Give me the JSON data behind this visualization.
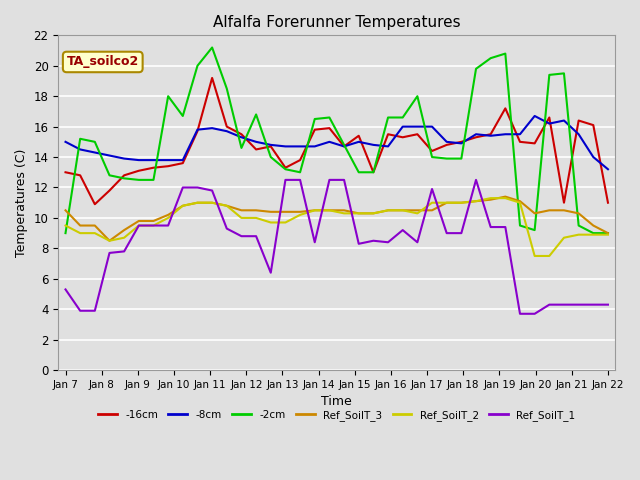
{
  "title": "Alfalfa Forerunner Temperatures",
  "xlabel": "Time",
  "ylabel": "Temperatures (C)",
  "annotation": "TA_soilco2",
  "ylim": [
    0,
    22
  ],
  "yticks": [
    0,
    2,
    4,
    6,
    8,
    10,
    12,
    14,
    16,
    18,
    20,
    22
  ],
  "x_labels": [
    "Jan 7",
    "Jan 8",
    "Jan 9",
    "Jan 10",
    "Jan 11",
    "Jan 12",
    "Jan 13",
    "Jan 14",
    "Jan 15",
    "Jan 16",
    "Jan 17",
    "Jan 18",
    "Jan 19",
    "Jan 20",
    "Jan 21",
    "Jan 22"
  ],
  "n_ticks": 16,
  "series": {
    "-16cm": {
      "color": "#cc0000",
      "values": [
        13.0,
        12.8,
        10.9,
        11.8,
        12.8,
        13.1,
        13.3,
        13.4,
        13.6,
        15.7,
        19.2,
        16.0,
        15.5,
        14.5,
        14.7,
        13.3,
        13.8,
        15.8,
        15.9,
        14.7,
        15.4,
        13.0,
        15.5,
        15.3,
        15.5,
        14.4,
        14.8,
        15.0,
        15.3,
        15.5,
        17.2,
        15.0,
        14.9,
        16.6,
        11.0,
        16.4,
        16.1,
        11.0
      ]
    },
    "-8cm": {
      "color": "#0000cc",
      "values": [
        15.0,
        14.5,
        14.3,
        14.1,
        13.9,
        13.8,
        13.8,
        13.8,
        13.8,
        15.8,
        15.9,
        15.7,
        15.3,
        15.0,
        14.8,
        14.7,
        14.7,
        14.7,
        15.0,
        14.7,
        15.0,
        14.8,
        14.7,
        16.0,
        16.0,
        16.0,
        15.0,
        14.9,
        15.5,
        15.4,
        15.5,
        15.5,
        16.7,
        16.2,
        16.4,
        15.5,
        14.0,
        13.2
      ]
    },
    "-2cm": {
      "color": "#00cc00",
      "values": [
        9.0,
        15.2,
        15.0,
        12.8,
        12.6,
        12.5,
        12.5,
        18.0,
        16.7,
        20.0,
        21.2,
        18.5,
        14.6,
        16.8,
        14.0,
        13.2,
        13.0,
        16.5,
        16.6,
        14.8,
        13.0,
        13.0,
        16.6,
        16.6,
        18.0,
        14.0,
        13.9,
        13.9,
        19.8,
        20.5,
        20.8,
        9.5,
        9.2,
        19.4,
        19.5,
        9.5,
        9.0,
        9.0
      ]
    },
    "Ref_SoilT_3": {
      "color": "#cc8800",
      "values": [
        10.5,
        9.5,
        9.5,
        8.5,
        9.2,
        9.8,
        9.8,
        10.2,
        10.8,
        11.0,
        11.0,
        10.8,
        10.5,
        10.5,
        10.4,
        10.4,
        10.4,
        10.5,
        10.5,
        10.5,
        10.3,
        10.3,
        10.5,
        10.5,
        10.5,
        10.5,
        11.0,
        11.0,
        11.1,
        11.2,
        11.4,
        11.1,
        10.3,
        10.5,
        10.5,
        10.3,
        9.5,
        9.0
      ]
    },
    "Ref_SoilT_2": {
      "color": "#cccc00",
      "values": [
        9.5,
        9.0,
        9.0,
        8.5,
        8.7,
        9.5,
        9.5,
        10.0,
        10.8,
        11.0,
        11.0,
        10.8,
        10.0,
        10.0,
        9.7,
        9.7,
        10.2,
        10.5,
        10.5,
        10.3,
        10.3,
        10.3,
        10.5,
        10.5,
        10.3,
        11.0,
        11.0,
        11.0,
        11.1,
        11.3,
        11.3,
        11.0,
        7.5,
        7.5,
        8.7,
        8.9,
        8.9,
        8.9
      ]
    },
    "Ref_SoilT_1": {
      "color": "#8800cc",
      "values": [
        5.3,
        3.9,
        3.9,
        7.7,
        7.8,
        9.5,
        9.5,
        9.5,
        12.0,
        12.0,
        11.8,
        9.3,
        8.8,
        8.8,
        6.4,
        12.5,
        12.5,
        8.4,
        12.5,
        12.5,
        8.3,
        8.5,
        8.4,
        9.2,
        8.4,
        11.9,
        9.0,
        9.0,
        12.5,
        9.4,
        9.4,
        3.7,
        3.7,
        4.3,
        4.3,
        4.3,
        4.3,
        4.3
      ]
    }
  },
  "background_color": "#e0e0e0",
  "plot_bg_color": "#e0e0e0",
  "grid_color": "#ffffff",
  "figsize": [
    6.4,
    4.8
  ],
  "dpi": 100
}
